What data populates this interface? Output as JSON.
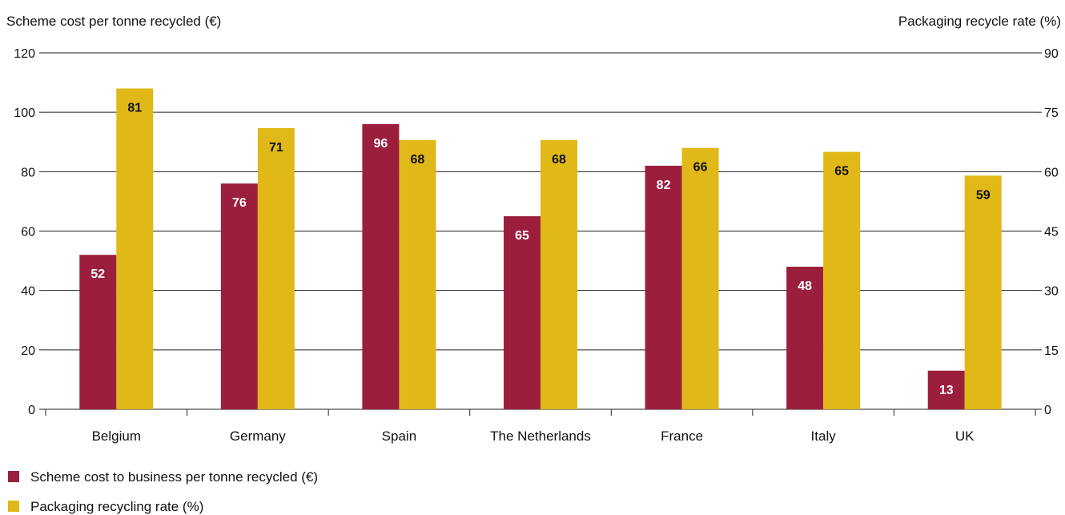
{
  "chart_data": {
    "type": "bar",
    "categories": [
      "Belgium",
      "Germany",
      "Spain",
      "The Netherlands",
      "France",
      "Italy",
      "UK"
    ],
    "series": [
      {
        "name": "Scheme cost to business per tonne recycled (€)",
        "axis": "left",
        "color": "#9b1f3d",
        "values": [
          52,
          76,
          96,
          65,
          82,
          48,
          13
        ]
      },
      {
        "name": "Packaging recycling rate (%)",
        "axis": "right",
        "color": "#e0b817",
        "values": [
          81,
          71,
          68,
          68,
          66,
          65,
          59
        ]
      }
    ],
    "y_left": {
      "label": "Scheme cost per tonne recycled (€)",
      "lim": [
        0,
        120
      ],
      "ticks": [
        "0",
        "20",
        "40",
        "60",
        "80",
        "100",
        "120"
      ]
    },
    "y_right": {
      "label": "Packaging recycle rate (%)",
      "lim": [
        0,
        90
      ],
      "ticks": [
        "0",
        "15",
        "30",
        "45",
        "60",
        "75",
        "90"
      ]
    },
    "grid": true,
    "legend_position": "bottom-left"
  }
}
